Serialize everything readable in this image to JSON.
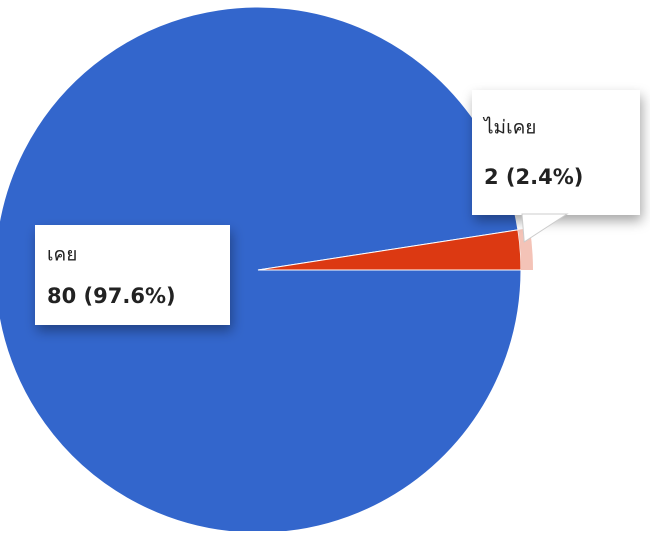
{
  "chart_data": {
    "type": "pie",
    "categories": [
      "เคย",
      "ไม่เคย"
    ],
    "values": [
      80,
      2
    ],
    "value_labels": [
      "80 (97.6%)",
      "2 (2.4%)"
    ],
    "colors": [
      "#3366cc",
      "#dc3912"
    ]
  }
}
